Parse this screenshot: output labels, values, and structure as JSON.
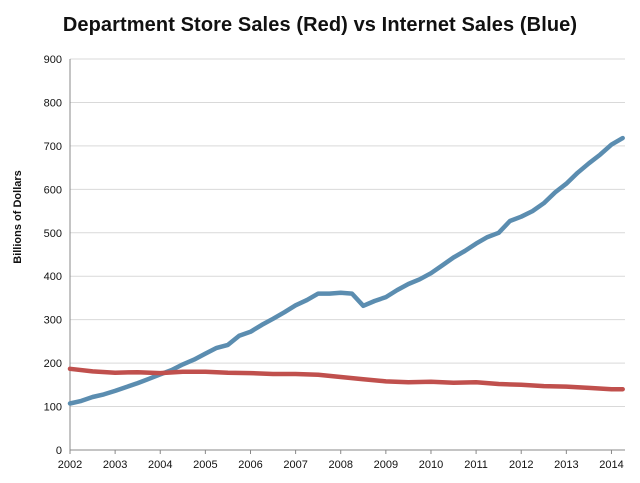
{
  "chart_data": {
    "type": "line",
    "title": "Department Store Sales (Red) vs Internet Sales (Blue)",
    "xlabel": "",
    "ylabel": "Billions of Dollars",
    "ylim": [
      0,
      900
    ],
    "xlim": [
      2002,
      2014.3
    ],
    "x_ticks": [
      "2002",
      "2003",
      "2004",
      "2005",
      "2006",
      "2007",
      "2008",
      "2009",
      "2010",
      "2011",
      "2012",
      "2013",
      "2014"
    ],
    "y_ticks": [
      "0",
      "100",
      "200",
      "300",
      "400",
      "500",
      "600",
      "700",
      "800",
      "900"
    ],
    "grid": true,
    "legend": "none",
    "series": [
      {
        "color": "#5b8db0",
        "x": [
          2002.0,
          2002.25,
          2002.5,
          2002.75,
          2003.0,
          2003.25,
          2003.5,
          2003.75,
          2004.0,
          2004.25,
          2004.5,
          2004.75,
          2005.0,
          2005.25,
          2005.5,
          2005.75,
          2006.0,
          2006.25,
          2006.5,
          2006.75,
          2007.0,
          2007.25,
          2007.5,
          2007.75,
          2008.0,
          2008.25,
          2008.5,
          2008.75,
          2009.0,
          2009.25,
          2009.5,
          2009.75,
          2010.0,
          2010.25,
          2010.5,
          2010.75,
          2011.0,
          2011.25,
          2011.5,
          2011.75,
          2012.0,
          2012.25,
          2012.5,
          2012.75,
          2013.0,
          2013.25,
          2013.5,
          2013.75,
          2014.0,
          2014.25
        ],
        "y": [
          107,
          113,
          122,
          128,
          136,
          145,
          154,
          164,
          174,
          184,
          197,
          208,
          222,
          235,
          242,
          263,
          272,
          288,
          302,
          317,
          333,
          345,
          360,
          360,
          362,
          360,
          332,
          343,
          352,
          368,
          382,
          393,
          407,
          425,
          443,
          458,
          475,
          490,
          500,
          527,
          537,
          550,
          568,
          593,
          613,
          638,
          660,
          680,
          703,
          718
        ]
      },
      {
        "color": "#c0504d",
        "x": [
          2002.0,
          2002.5,
          2003.0,
          2003.5,
          2004.0,
          2004.5,
          2005.0,
          2005.5,
          2006.0,
          2006.5,
          2007.0,
          2007.5,
          2008.0,
          2008.5,
          2009.0,
          2009.5,
          2010.0,
          2010.5,
          2011.0,
          2011.5,
          2012.0,
          2012.5,
          2013.0,
          2013.5,
          2014.0,
          2014.25
        ],
        "y": [
          187,
          181,
          178,
          179,
          177,
          180,
          180,
          178,
          177,
          175,
          175,
          173,
          168,
          163,
          158,
          156,
          157,
          155,
          156,
          152,
          150,
          147,
          146,
          143,
          140,
          140
        ]
      }
    ]
  }
}
